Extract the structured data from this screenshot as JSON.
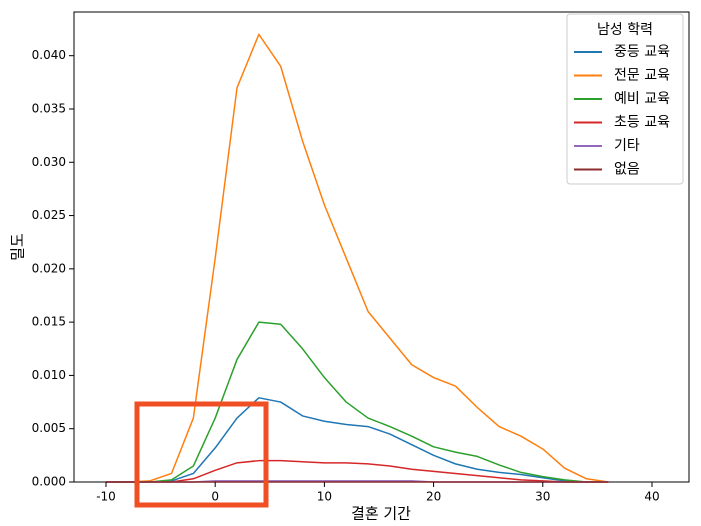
{
  "chart_data": {
    "type": "line",
    "x_label": "결혼 기간",
    "y_label": "밀도",
    "legend_title": "남성 학력",
    "legend": "upper right",
    "x": [
      -10,
      -8,
      -6,
      -4,
      -2,
      0,
      2,
      4,
      6,
      8,
      10,
      12,
      14,
      16,
      18,
      20,
      22,
      24,
      26,
      28,
      30,
      32,
      34,
      36
    ],
    "series": [
      {
        "name": "중등 교육",
        "color": "#1f77b4",
        "values": [
          0,
          0,
          0,
          0.0001,
          0.0008,
          0.0032,
          0.006,
          0.0079,
          0.0075,
          0.0062,
          0.0057,
          0.0054,
          0.0052,
          0.0045,
          0.0035,
          0.0025,
          0.0017,
          0.0012,
          0.0009,
          0.0007,
          0.0004,
          0.0001,
          0,
          0
        ]
      },
      {
        "name": "전문 교육",
        "color": "#ff7f0e",
        "values": [
          0,
          0,
          0.0001,
          0.0008,
          0.006,
          0.021,
          0.037,
          0.042,
          0.039,
          0.032,
          0.026,
          0.021,
          0.016,
          0.0135,
          0.011,
          0.0098,
          0.009,
          0.007,
          0.0052,
          0.0043,
          0.0031,
          0.0013,
          0.0003,
          0
        ]
      },
      {
        "name": "예비 교육",
        "color": "#2ca02c",
        "values": [
          0,
          0,
          0,
          0.0002,
          0.0015,
          0.006,
          0.0115,
          0.015,
          0.0148,
          0.0125,
          0.0098,
          0.0075,
          0.006,
          0.0052,
          0.0043,
          0.0033,
          0.0028,
          0.0024,
          0.0016,
          0.0009,
          0.0005,
          0.0002,
          0,
          0
        ]
      },
      {
        "name": "초등 교육",
        "color": "#d62728",
        "values": [
          0,
          0,
          0,
          0,
          0.0003,
          0.0011,
          0.0018,
          0.002,
          0.002,
          0.0019,
          0.0018,
          0.0018,
          0.0017,
          0.0015,
          0.0012,
          0.001,
          0.0008,
          0.0006,
          0.0004,
          0.0002,
          0.0001,
          0,
          0,
          0
        ]
      },
      {
        "name": "기타",
        "color": "#9467bd",
        "values": [
          0,
          0,
          0,
          0,
          0,
          0.0001,
          0.0001,
          0.0001,
          0.0001,
          0.0001,
          0.0001,
          0.0001,
          0.0001,
          0.0001,
          0.0001,
          0,
          0,
          0,
          0,
          0,
          0,
          0,
          0,
          0
        ]
      },
      {
        "name": "없음",
        "color": "#8c2d2d",
        "values": [
          0,
          0,
          0,
          0,
          0,
          0,
          0,
          0,
          0,
          0,
          0,
          0,
          0,
          0,
          0,
          0,
          0,
          0,
          0,
          0,
          0,
          0,
          0,
          0
        ]
      }
    ],
    "xlim": [
      -12.93,
      43.39
    ],
    "ylim": [
      0,
      0.0441
    ],
    "xticks": [
      -10,
      0,
      10,
      20,
      30,
      40
    ],
    "yticks": [
      {
        "value": 0,
        "label": "0.000"
      },
      {
        "value": 0.005,
        "label": "0.005"
      },
      {
        "value": 0.01,
        "label": "0.010"
      },
      {
        "value": 0.015,
        "label": "0.015"
      },
      {
        "value": 0.02,
        "label": "0.020"
      },
      {
        "value": 0.025,
        "label": "0.025"
      },
      {
        "value": 0.03,
        "label": "0.030"
      },
      {
        "value": 0.035,
        "label": "0.035"
      },
      {
        "value": 0.04,
        "label": "0.040"
      }
    ]
  }
}
